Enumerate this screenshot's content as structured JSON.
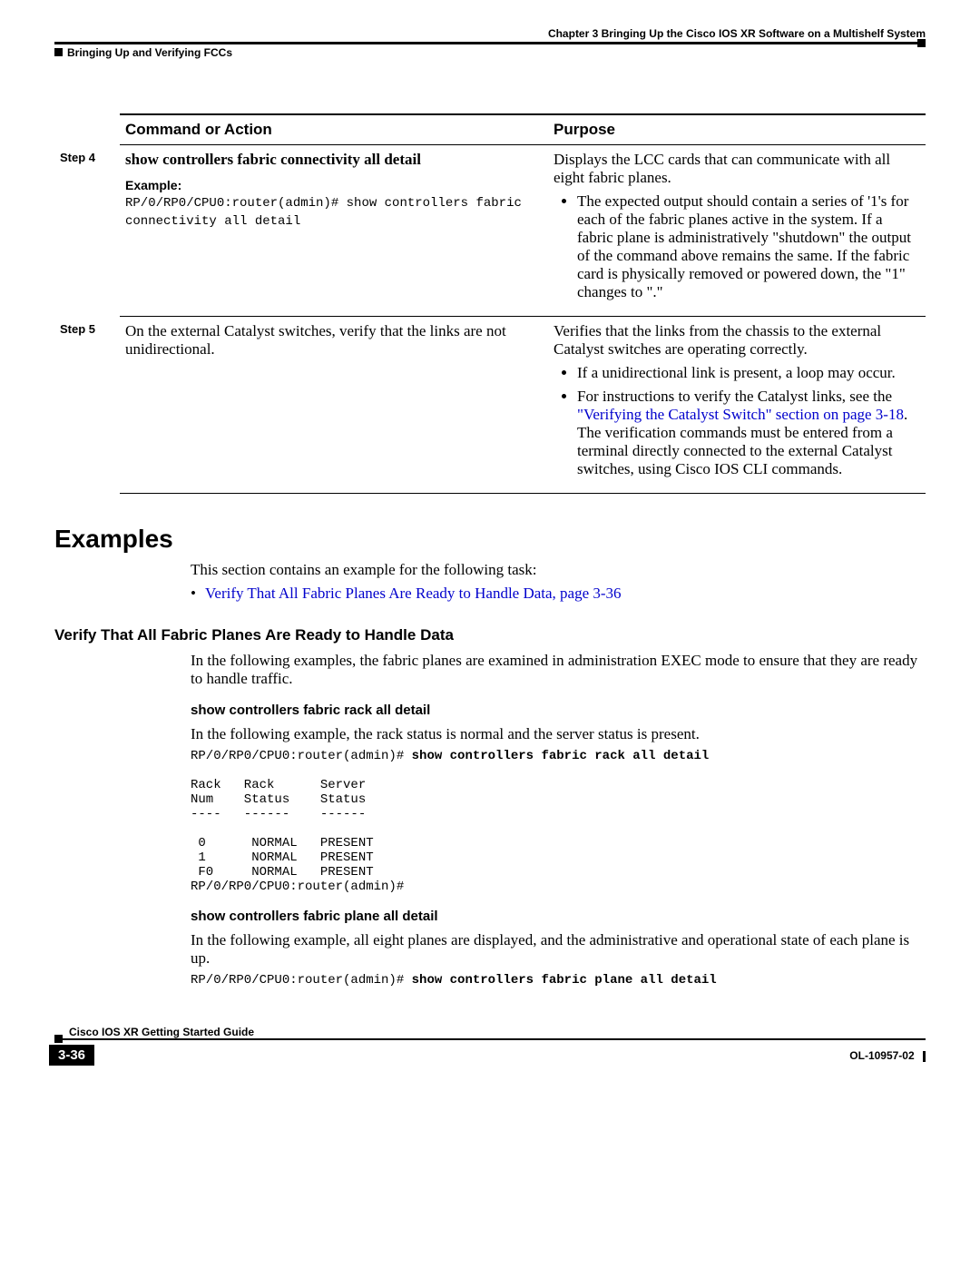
{
  "header": {
    "chapter": "Chapter 3    Bringing Up the Cisco IOS XR Software on a Multishelf System",
    "section": "Bringing Up and Verifying FCCs"
  },
  "table": {
    "head": {
      "col1": "Command or Action",
      "col2": "Purpose"
    },
    "rows": [
      {
        "step": "Step 4",
        "command_bold": "show controllers fabric connectivity all detail",
        "example_label": "Example:",
        "example_text": "RP/0/RP0/CPU0:router(admin)# show controllers fabric\nconnectivity all detail",
        "purpose_lead": "Displays the LCC cards that can communicate with all eight fabric planes.",
        "bullets": [
          "The expected output should contain a series of '1's for each of the fabric planes active in the system. If a fabric plane is administratively \"shutdown\" the output of the command above remains the same. If the fabric card is physically removed or powered down, the \"1\" changes to \".\""
        ]
      },
      {
        "step": "Step 5",
        "command_text": "On the external Catalyst switches, verify that the links are not unidirectional.",
        "purpose_lead": "Verifies that the links from the chassis to the external Catalyst switches are operating correctly.",
        "bullets": [
          "If a unidirectional link is present, a loop may occur.",
          {
            "pre": "For instructions to verify the Catalyst links, see the ",
            "link": "\"Verifying the Catalyst Switch\" section on page 3-18",
            "post": ". The verification commands must be entered from a terminal directly connected to the external Catalyst switches, using Cisco IOS CLI commands."
          }
        ]
      }
    ]
  },
  "examples": {
    "heading": "Examples",
    "intro": "This section contains an example for the following task:",
    "link": "Verify That All Fabric Planes Are Ready to Handle Data, page 3-36",
    "sub_heading": "Verify That All Fabric Planes Are Ready to Handle Data",
    "sub_intro": "In the following examples, the fabric planes are examined in administration EXEC mode to ensure that they are ready to handle traffic.",
    "block1": {
      "title": "show controllers fabric rack all detail",
      "lead": "In the following example, the rack status is normal and the server status is present.",
      "prompt": "RP/0/RP0/CPU0:router(admin)# ",
      "cmd": "show controllers fabric rack all detail",
      "output": "Rack   Rack      Server\nNum    Status    Status\n----   ------    ------\n\n 0      NORMAL   PRESENT\n 1      NORMAL   PRESENT\n F0     NORMAL   PRESENT\nRP/0/RP0/CPU0:router(admin)#"
    },
    "block2": {
      "title": "show controllers fabric plane all detail",
      "lead": "In the following example, all eight planes are displayed, and the administrative and operational state of each plane is up.",
      "prompt": "RP/0/RP0/CPU0:router(admin)# ",
      "cmd": "show controllers fabric plane all detail"
    }
  },
  "footer": {
    "title": "Cisco IOS XR Getting Started Guide",
    "page": "3-36",
    "doc_id": "OL-10957-02"
  }
}
